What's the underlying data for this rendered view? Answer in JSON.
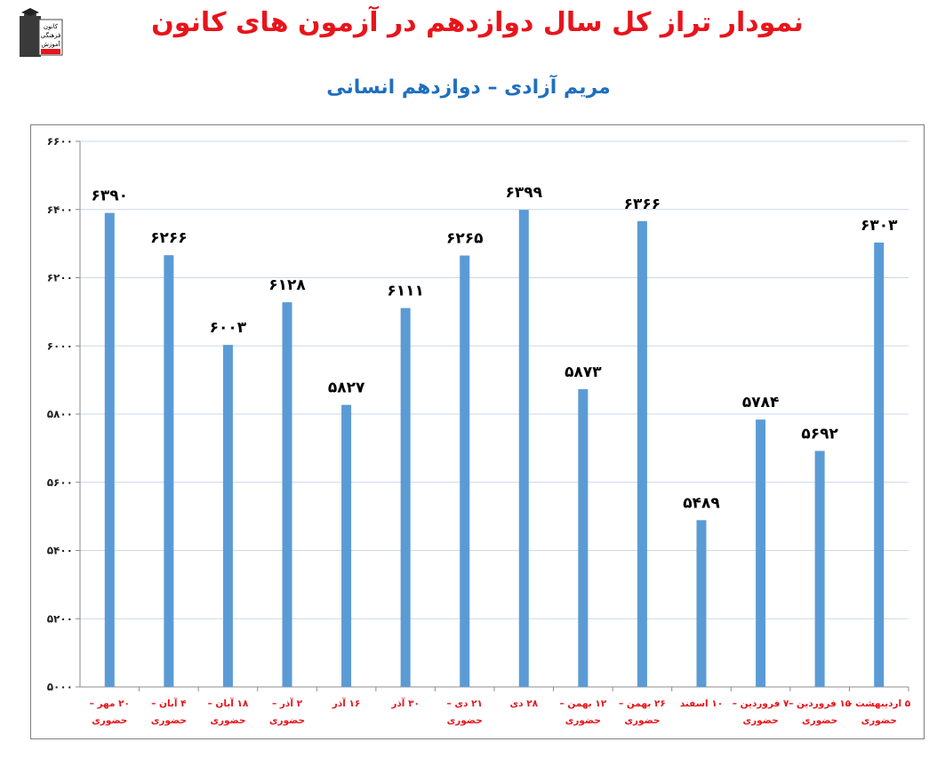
{
  "header": {
    "title": "نمودار تراز کل سال دوازدهم در آزمون های کانون",
    "subtitle": "مریم آزادی – دوازدهم انسانی",
    "logo_icon": "kanoon-logo-icon",
    "logo_text": [
      "کانون",
      "فرهنگی",
      "آموزش"
    ]
  },
  "colors": {
    "title": "#e8141b",
    "subtitle": "#1f6fbf",
    "bar": "#5b9bd5",
    "category_label": "#e8141b",
    "grid": "#c9d9ea"
  },
  "chart_data": {
    "type": "bar",
    "title": "نمودار تراز کل سال دوازدهم در آزمون های کانون",
    "subtitle": "مریم آزادی – دوازدهم انسانی",
    "categories": [
      [
        "۲۰ مهر –",
        "حضوری"
      ],
      [
        "۴ آبان –",
        "حضوری"
      ],
      [
        "۱۸ آبان –",
        "حضوری"
      ],
      [
        "۲ آذر –",
        "حضوری"
      ],
      [
        "۱۶ آذر",
        ""
      ],
      [
        "۳۰ آذر",
        ""
      ],
      [
        "۲۱ دی –",
        "حضوری"
      ],
      [
        "۲۸ دی",
        ""
      ],
      [
        "۱۲ بهمن –",
        "حضوری"
      ],
      [
        "۲۶ بهمن –",
        "حضوری"
      ],
      [
        "۱۰ اسفند",
        ""
      ],
      [
        "۷ فروردین –",
        "حضوری"
      ],
      [
        "۱۵ فروردین –",
        "حضوری"
      ],
      [
        "۵ اردیبهشت –",
        "حضوری"
      ]
    ],
    "values": [
      6390,
      6266,
      6003,
      6128,
      5827,
      6111,
      6265,
      6399,
      5873,
      6366,
      5489,
      5784,
      5692,
      6303
    ],
    "value_labels": [
      "۶۳۹۰",
      "۶۲۶۶",
      "۶۰۰۳",
      "۶۱۲۸",
      "۵۸۲۷",
      "۶۱۱۱",
      "۶۲۶۵",
      "۶۳۹۹",
      "۵۸۷۳",
      "۶۳۶۶",
      "۵۴۸۹",
      "۵۷۸۴",
      "۵۶۹۲",
      "۶۳۰۳"
    ],
    "ylim": [
      5000,
      6600
    ],
    "yticks": [
      5000,
      5200,
      5400,
      5600,
      5800,
      6000,
      6200,
      6400,
      6600
    ],
    "ytick_labels": [
      "۵۰۰۰",
      "۵۲۰۰",
      "۵۴۰۰",
      "۵۶۰۰",
      "۵۸۰۰",
      "۶۰۰۰",
      "۶۲۰۰",
      "۶۴۰۰",
      "۶۶۰۰"
    ],
    "xlabel": "",
    "ylabel": "",
    "grid": true,
    "legend": "none"
  }
}
